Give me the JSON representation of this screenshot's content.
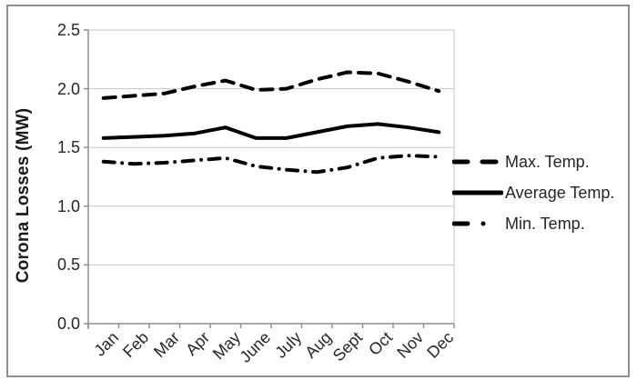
{
  "figure": {
    "colors": {
      "line": "#000000",
      "gridline": "#c6c6c6",
      "axis": "#8f8f8f",
      "text": "#262626",
      "border": "#8e8e8e",
      "background": "#ffffff"
    }
  },
  "chart_data": {
    "type": "line",
    "title": "",
    "xlabel": "",
    "ylabel": "Corona Losses (MW)",
    "ylim": [
      0,
      2.5
    ],
    "yticks": [
      0.0,
      0.5,
      1.0,
      1.5,
      2.0,
      2.5
    ],
    "ytick_labels": [
      "0.0",
      "0.5",
      "1.0",
      "1.5",
      "2.0",
      "2.5"
    ],
    "grid": "horizontal",
    "legend_position": "right",
    "categories": [
      "Jan",
      "Feb",
      "Mar",
      "Apr",
      "May",
      "June",
      "July",
      "Aug",
      "Sept",
      "Oct",
      "Nov",
      "Dec"
    ],
    "series": [
      {
        "name": "Max. Temp.",
        "style": "dashed",
        "color": "#000000",
        "values": [
          1.92,
          1.94,
          1.96,
          2.02,
          2.07,
          1.99,
          2.0,
          2.08,
          2.14,
          2.13,
          2.06,
          1.98
        ]
      },
      {
        "name": "Average Temp.",
        "style": "solid",
        "color": "#000000",
        "values": [
          1.58,
          1.59,
          1.6,
          1.62,
          1.67,
          1.58,
          1.58,
          1.63,
          1.68,
          1.7,
          1.67,
          1.63
        ]
      },
      {
        "name": "Min. Temp.",
        "style": "dashdot",
        "color": "#000000",
        "values": [
          1.38,
          1.36,
          1.37,
          1.39,
          1.41,
          1.34,
          1.31,
          1.29,
          1.33,
          1.41,
          1.43,
          1.42
        ]
      }
    ]
  }
}
